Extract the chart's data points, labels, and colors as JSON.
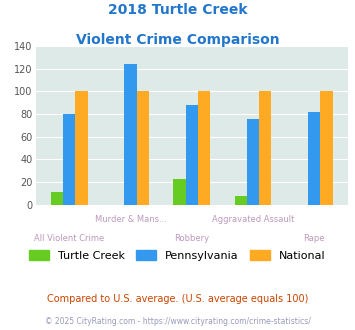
{
  "title_line1": "2018 Turtle Creek",
  "title_line2": "Violent Crime Comparison",
  "groups": [
    {
      "label_top": "",
      "label_bottom": "All Violent Crime",
      "turtle_creek": 11,
      "pennsylvania": 80,
      "national": 100
    },
    {
      "label_top": "Murder & Mans...",
      "label_bottom": "",
      "turtle_creek": 0,
      "pennsylvania": 124,
      "national": 100
    },
    {
      "label_top": "",
      "label_bottom": "Robbery",
      "turtle_creek": 23,
      "pennsylvania": 88,
      "national": 100
    },
    {
      "label_top": "Aggravated Assault",
      "label_bottom": "",
      "turtle_creek": 8,
      "pennsylvania": 76,
      "national": 100
    },
    {
      "label_top": "",
      "label_bottom": "Rape",
      "turtle_creek": 0,
      "pennsylvania": 82,
      "national": 100
    }
  ],
  "bar_colors": {
    "turtle_creek": "#66cc22",
    "pennsylvania": "#3399ee",
    "national": "#ffaa22"
  },
  "legend_labels": [
    "Turtle Creek",
    "Pennsylvania",
    "National"
  ],
  "ylim": [
    0,
    140
  ],
  "yticks": [
    0,
    20,
    40,
    60,
    80,
    100,
    120,
    140
  ],
  "bg_color": "#ddeae8",
  "title_color": "#2277cc",
  "axis_label_color_top": "#bb99bb",
  "axis_label_color_bot": "#bb99bb",
  "footnote1": "Compared to U.S. average. (U.S. average equals 100)",
  "footnote2": "© 2025 CityRating.com - https://www.cityrating.com/crime-statistics/",
  "footnote1_color": "#cc4400",
  "footnote2_color": "#9999bb"
}
